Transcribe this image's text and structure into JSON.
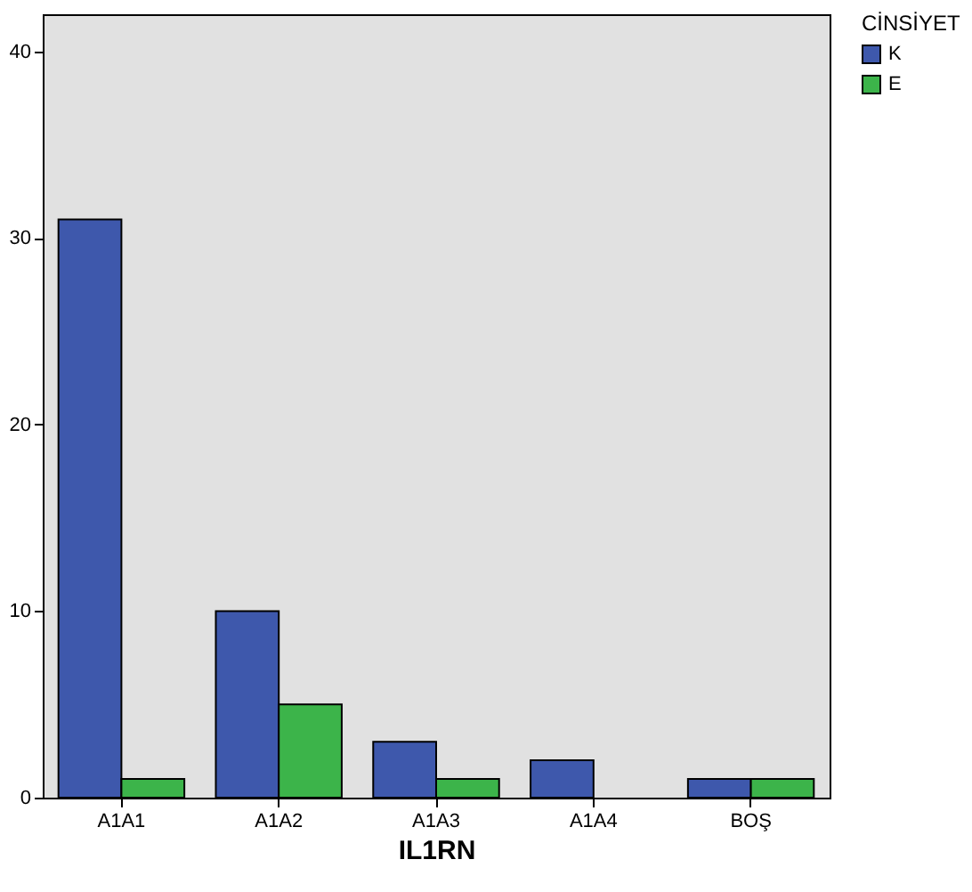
{
  "chart_data": {
    "type": "bar",
    "xlabel": "IL1RN",
    "legend_title": "CİNSİYET",
    "legend": "top right",
    "grid": false,
    "categories": [
      "A1A1",
      "A1A2",
      "A1A3",
      "A1A4",
      "BOŞ"
    ],
    "series": [
      {
        "name": "K",
        "color": "#3e58ac",
        "values": [
          31,
          10,
          3,
          2,
          1
        ]
      },
      {
        "name": "E",
        "color": "#3cb44a",
        "values": [
          1,
          5,
          1,
          null,
          1
        ]
      }
    ],
    "ylim": [
      0,
      42
    ],
    "yticks": [
      0,
      10,
      20,
      30,
      40
    ]
  }
}
